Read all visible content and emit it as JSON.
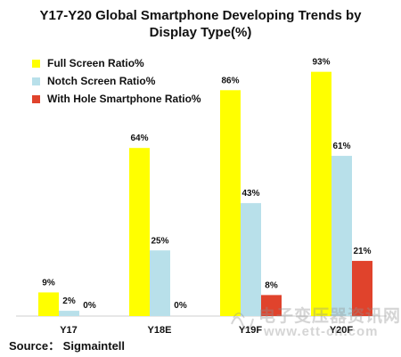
{
  "chart_data": {
    "type": "bar",
    "title": "Y17-Y20 Global Smartphone Developing Trends by Display Type(%)",
    "categories": [
      "Y17",
      "Y18E",
      "Y19F",
      "Y20F"
    ],
    "series": [
      {
        "name": "Full Screen Ratio%",
        "values": [
          9,
          64,
          86,
          93
        ],
        "labels": [
          "9%",
          "64%",
          "86%",
          "93%"
        ],
        "color": "#ffff00"
      },
      {
        "name": "Notch Screen Ratio%",
        "values": [
          2,
          25,
          43,
          61
        ],
        "labels": [
          "2%",
          "25%",
          "43%",
          "61%"
        ],
        "color": "#b8e0ea"
      },
      {
        "name": "With Hole Smartphone Ratio%",
        "values": [
          0,
          0,
          8,
          21
        ],
        "labels": [
          "0%",
          "0%",
          "8%",
          "21%"
        ],
        "color": "#e0432c"
      }
    ],
    "ylim": [
      0,
      100
    ],
    "grid": false,
    "legend_position": "top-left",
    "xlabel": "",
    "ylabel": ""
  },
  "footer": {
    "source": "Source： Sigmaintell"
  },
  "watermark": {
    "line1": "电子变压器资讯网",
    "line2": "www.ett-cn.com"
  }
}
